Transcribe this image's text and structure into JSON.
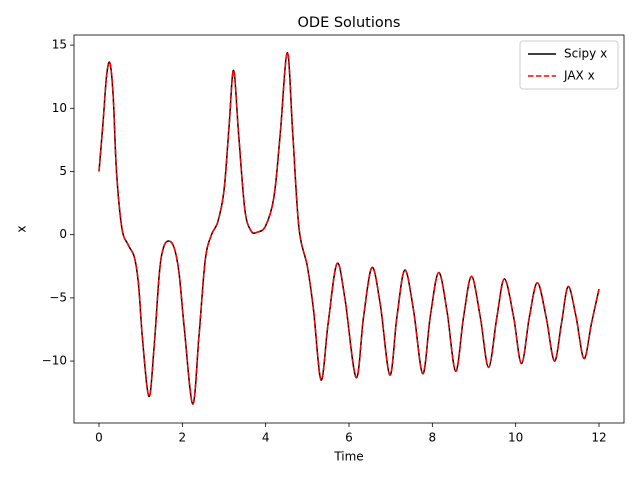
{
  "chart_data": {
    "type": "line",
    "title": "ODE Solutions",
    "xlabel": "Time",
    "ylabel": "x",
    "x": [
      0,
      0.1,
      0.18,
      0.26,
      0.34,
      0.42,
      0.55,
      0.7,
      0.85,
      0.95,
      1.05,
      1.2,
      1.32,
      1.45,
      1.55,
      1.67,
      1.8,
      1.92,
      2.05,
      2.25,
      2.4,
      2.55,
      2.7,
      2.85,
      3.0,
      3.12,
      3.23,
      3.35,
      3.5,
      3.65,
      3.8,
      4.0,
      4.2,
      4.35,
      4.52,
      4.65,
      4.8,
      5.0,
      5.15,
      5.33,
      5.5,
      5.71,
      5.9,
      6.17,
      6.35,
      6.55,
      6.75,
      6.98,
      7.15,
      7.34,
      7.55,
      7.77,
      7.95,
      8.15,
      8.35,
      8.56,
      8.75,
      8.94,
      9.15,
      9.35,
      9.55,
      9.73,
      9.95,
      10.14,
      10.33,
      10.52,
      10.73,
      10.93,
      11.1,
      11.26,
      11.45,
      11.64,
      11.82,
      12.0
    ],
    "series": [
      {
        "name": "Scipy x",
        "color": "#000000",
        "dash": false,
        "values": [
          5,
          9,
          12.5,
          13.6,
          11,
          5,
          0.5,
          -0.8,
          -1.8,
          -4,
          -8.5,
          -12.8,
          -9,
          -3,
          -1,
          -0.5,
          -1,
          -3,
          -7.5,
          -13.4,
          -8,
          -2,
          0,
          1,
          3.5,
          8.5,
          13,
          8,
          2,
          0.3,
          0.2,
          0.7,
          3,
          8,
          14.4,
          8,
          0.5,
          -2.5,
          -6,
          -11.5,
          -7,
          -2.3,
          -5,
          -11.3,
          -6.5,
          -2.6,
          -5.5,
          -11.1,
          -6.5,
          -2.8,
          -6,
          -11.0,
          -6.5,
          -3.0,
          -6,
          -10.8,
          -6.5,
          -3.3,
          -6.5,
          -10.5,
          -6.5,
          -3.5,
          -6.5,
          -10.2,
          -6.5,
          -3.8,
          -6.5,
          -10.0,
          -7,
          -4.1,
          -6.5,
          -9.8,
          -7,
          -4.3
        ]
      },
      {
        "name": "JAX x",
        "color": "#ff0000",
        "dash": true,
        "values": [
          5,
          9,
          12.5,
          13.6,
          11,
          5,
          0.5,
          -0.8,
          -1.8,
          -4,
          -8.5,
          -12.8,
          -9,
          -3,
          -1,
          -0.5,
          -1,
          -3,
          -7.5,
          -13.4,
          -8,
          -2,
          0,
          1,
          3.5,
          8.5,
          13,
          8,
          2,
          0.3,
          0.2,
          0.7,
          3,
          8,
          14.4,
          8,
          0.5,
          -2.5,
          -6,
          -11.5,
          -7,
          -2.3,
          -5,
          -11.3,
          -6.5,
          -2.6,
          -5.5,
          -11.1,
          -6.5,
          -2.8,
          -6,
          -11.0,
          -6.5,
          -3.0,
          -6,
          -10.8,
          -6.5,
          -3.3,
          -6.5,
          -10.5,
          -6.5,
          -3.5,
          -6.5,
          -10.2,
          -6.5,
          -3.8,
          -6.5,
          -10.0,
          -7,
          -4.1,
          -6.5,
          -9.8,
          -7,
          -4.3
        ]
      }
    ],
    "xlim": [
      -0.6,
      12.6
    ],
    "xticks": [
      0,
      2,
      4,
      6,
      8,
      10,
      12
    ],
    "ylim": [
      -14.9,
      15.8
    ],
    "yticks": [
      {
        "value": -10,
        "label": "−10"
      },
      {
        "value": -5,
        "label": "−5"
      },
      0,
      5,
      10,
      15
    ],
    "grid": false,
    "legend": "upper right"
  }
}
